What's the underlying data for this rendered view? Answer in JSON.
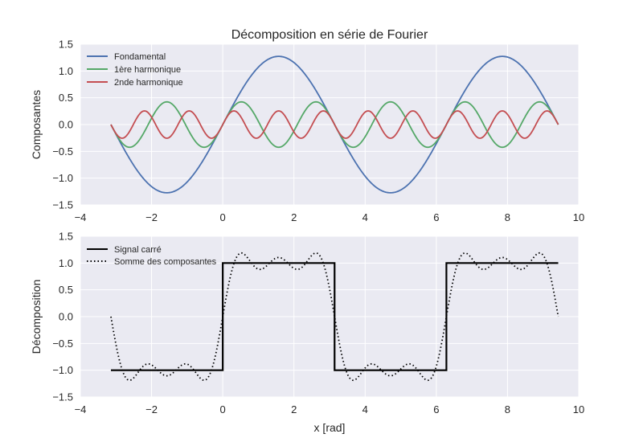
{
  "figure": {
    "title": "Décomposition en série de Fourier",
    "xlabel": "x [rad]"
  },
  "colors": {
    "background": "#eaeaf2",
    "grid": "#ffffff",
    "fondamental": "#4c72b0",
    "harmonique1": "#55a868",
    "harmonique2": "#c44e52",
    "signal": "#000000"
  },
  "chart_data": [
    {
      "type": "line",
      "ylabel": "Composantes",
      "xlim": [
        -4,
        10
      ],
      "ylim": [
        -1.5,
        1.5
      ],
      "xticks": [
        "−4",
        "−2",
        "0",
        "2",
        "4",
        "6",
        "8",
        "10"
      ],
      "yticks": [
        "1.5",
        "1.0",
        "0.5",
        "0.0",
        "−0.5",
        "−1.0",
        "−1.5"
      ],
      "grid": true,
      "legend_position": "top-left",
      "x_range": [
        -3.14159,
        9.42478
      ],
      "series": [
        {
          "name": "Fondamental",
          "formula": "4/π·sin(x)",
          "amplitude": 1.273,
          "frequency": 1
        },
        {
          "name": "1ère harmonique",
          "formula": "4/(3π)·sin(3x)",
          "amplitude": 0.424,
          "frequency": 3
        },
        {
          "name": "2nde harmonique",
          "formula": "4/(5π)·sin(5x)",
          "amplitude": 0.255,
          "frequency": 5
        }
      ]
    },
    {
      "type": "line",
      "ylabel": "Décomposition",
      "xlabel": "x [rad]",
      "xlim": [
        -4,
        10
      ],
      "ylim": [
        -1.5,
        1.5
      ],
      "xticks": [
        "−4",
        "−2",
        "0",
        "2",
        "4",
        "6",
        "8",
        "10"
      ],
      "yticks": [
        "1.5",
        "1.0",
        "0.5",
        "0.0",
        "−0.5",
        "−1.0",
        "−1.5"
      ],
      "grid": true,
      "legend_position": "top-left",
      "x_range": [
        -3.14159,
        9.42478
      ],
      "series": [
        {
          "name": "Signal carré",
          "style": "solid",
          "description": "square wave ±1, period 2π"
        },
        {
          "name": "Somme des composantes",
          "style": "dotted",
          "description": "sum of first three odd harmonics"
        }
      ]
    }
  ]
}
